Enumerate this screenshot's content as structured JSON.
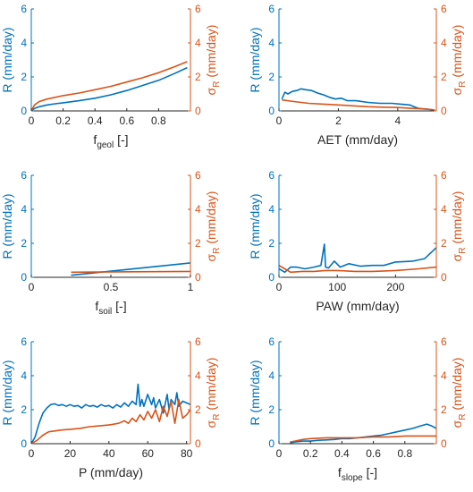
{
  "colors": {
    "R": "#0072BD",
    "sigma": "#D95319",
    "axis": "#262626"
  },
  "chart_data": [
    {
      "type": "line",
      "xlabel": "f",
      "xlabel_sub": "geol",
      "xlabel_suffix": " [-]",
      "ylabel_left": "R (mm/day)",
      "ylabel_right_sym": "σ",
      "ylabel_right_sub": "R",
      "ylabel_right_rest": " (mm/day)",
      "xlim": [
        0,
        1
      ],
      "ylim": [
        0,
        6
      ],
      "xticks": [
        0,
        0.2,
        0.4,
        0.6,
        0.8
      ],
      "xtick_labels": [
        "0",
        "0.2",
        "0.4",
        "0.6",
        "0.8"
      ],
      "yticks": [
        0,
        2,
        4,
        6
      ],
      "ytick_labels": [
        "0",
        "2",
        "4",
        "6"
      ],
      "series": [
        {
          "key": "R",
          "x": [
            0,
            0.02,
            0.05,
            0.1,
            0.15,
            0.2,
            0.3,
            0.4,
            0.5,
            0.6,
            0.7,
            0.8,
            0.9,
            0.98
          ],
          "y": [
            0,
            0.15,
            0.25,
            0.35,
            0.42,
            0.48,
            0.6,
            0.75,
            0.95,
            1.2,
            1.5,
            1.8,
            2.2,
            2.55
          ]
        },
        {
          "key": "sigma",
          "x": [
            0,
            0.02,
            0.05,
            0.1,
            0.15,
            0.2,
            0.3,
            0.4,
            0.5,
            0.6,
            0.7,
            0.8,
            0.9,
            0.98
          ],
          "y": [
            0,
            0.35,
            0.55,
            0.7,
            0.8,
            0.9,
            1.05,
            1.25,
            1.45,
            1.7,
            1.95,
            2.25,
            2.6,
            2.9
          ]
        }
      ]
    },
    {
      "type": "line",
      "xlabel": "AET (mm/day)",
      "xlabel_sub": "",
      "xlabel_suffix": "",
      "ylabel_left": "R (mm/day)",
      "ylabel_right_sym": "σ",
      "ylabel_right_sub": "R",
      "ylabel_right_rest": " (mm/day)",
      "xlim": [
        0,
        5.3
      ],
      "ylim": [
        0,
        6
      ],
      "xticks": [
        0,
        2,
        4
      ],
      "xtick_labels": [
        "0",
        "2",
        "4"
      ],
      "yticks": [
        0,
        2,
        4,
        6
      ],
      "ytick_labels": [
        "0",
        "2",
        "4",
        "6"
      ],
      "series": [
        {
          "key": "R",
          "x": [
            0.1,
            0.2,
            0.3,
            0.45,
            0.6,
            0.75,
            0.9,
            1.1,
            1.3,
            1.5,
            1.7,
            1.9,
            2.1,
            2.3,
            2.6,
            3.0,
            3.4,
            3.8,
            4.1,
            4.4,
            4.7,
            5.0,
            5.25
          ],
          "y": [
            0.7,
            1.1,
            1.0,
            1.15,
            1.2,
            1.3,
            1.25,
            1.2,
            1.05,
            0.95,
            0.8,
            0.7,
            0.75,
            0.6,
            0.6,
            0.5,
            0.45,
            0.45,
            0.4,
            0.35,
            0.15,
            0.1,
            0.05
          ]
        },
        {
          "key": "sigma",
          "x": [
            0.1,
            0.5,
            1.0,
            1.5,
            2.0,
            2.5,
            3.0,
            3.5,
            4.0,
            4.5,
            5.0,
            5.25
          ],
          "y": [
            0.65,
            0.55,
            0.45,
            0.4,
            0.35,
            0.3,
            0.25,
            0.22,
            0.2,
            0.15,
            0.1,
            0.05
          ]
        }
      ]
    },
    {
      "type": "line",
      "xlabel": "f",
      "xlabel_sub": "soil",
      "xlabel_suffix": " [-]",
      "ylabel_left": "R (mm/day)",
      "ylabel_right_sym": "σ",
      "ylabel_right_sub": "R",
      "ylabel_right_rest": " (mm/day)",
      "xlim": [
        0,
        1
      ],
      "ylim": [
        0,
        6
      ],
      "xticks": [
        0,
        0.5,
        1
      ],
      "xtick_labels": [
        "0",
        "0.5",
        "1"
      ],
      "yticks": [
        0,
        2,
        4,
        6
      ],
      "ytick_labels": [
        "0",
        "2",
        "4",
        "6"
      ],
      "series": [
        {
          "key": "R",
          "x": [
            0.25,
            1.0
          ],
          "y": [
            0.12,
            0.85
          ]
        },
        {
          "key": "sigma",
          "x": [
            0.25,
            1.0
          ],
          "y": [
            0.3,
            0.35
          ]
        }
      ]
    },
    {
      "type": "line",
      "xlabel": "PAW (mm/day)",
      "xlabel_sub": "",
      "xlabel_suffix": "",
      "ylabel_left": "R (mm/day)",
      "ylabel_right_sym": "σ",
      "ylabel_right_sub": "R",
      "ylabel_right_rest": " (mm/day)",
      "xlim": [
        0,
        270
      ],
      "ylim": [
        0,
        6
      ],
      "xticks": [
        0,
        100,
        200
      ],
      "xtick_labels": [
        "0",
        "100",
        "200"
      ],
      "yticks": [
        0,
        2,
        4,
        6
      ],
      "ytick_labels": [
        "0",
        "2",
        "4",
        "6"
      ],
      "series": [
        {
          "key": "R",
          "x": [
            0,
            10,
            20,
            30,
            45,
            60,
            72,
            78,
            80,
            85,
            95,
            105,
            120,
            140,
            160,
            180,
            200,
            230,
            250,
            270
          ],
          "y": [
            0.5,
            0.3,
            0.6,
            0.6,
            0.5,
            0.6,
            0.7,
            1.95,
            0.6,
            0.55,
            0.95,
            0.6,
            0.8,
            0.65,
            0.7,
            0.7,
            0.9,
            0.95,
            1.1,
            1.75
          ]
        },
        {
          "key": "sigma",
          "x": [
            0,
            10,
            20,
            40,
            60,
            80,
            100,
            130,
            160,
            200,
            240,
            270
          ],
          "y": [
            0.7,
            0.5,
            0.3,
            0.35,
            0.35,
            0.4,
            0.4,
            0.35,
            0.35,
            0.4,
            0.5,
            0.6
          ]
        }
      ]
    },
    {
      "type": "line",
      "xlabel": "P (mm/day)",
      "xlabel_sub": "",
      "xlabel_suffix": "",
      "ylabel_left": "R (mm/day)",
      "ylabel_right_sym": "σ",
      "ylabel_right_sub": "R",
      "ylabel_right_rest": " (mm/day)",
      "xlim": [
        0,
        82
      ],
      "ylim": [
        0,
        6
      ],
      "xticks": [
        0,
        20,
        40,
        60,
        80
      ],
      "xtick_labels": [
        "0",
        "20",
        "40",
        "60",
        "80"
      ],
      "yticks": [
        0,
        2,
        4,
        6
      ],
      "ytick_labels": [
        "0",
        "2",
        "4",
        "6"
      ],
      "series": [
        {
          "key": "R",
          "x": [
            0,
            2,
            4,
            6,
            8,
            10,
            12,
            14,
            16,
            18,
            20,
            22,
            24,
            26,
            28,
            30,
            32,
            34,
            36,
            38,
            40,
            42,
            44,
            46,
            48,
            50,
            52,
            54,
            55,
            56,
            57,
            58,
            60,
            62,
            63,
            64,
            66,
            68,
            70,
            71,
            72,
            74,
            75,
            76,
            78,
            80,
            82
          ],
          "y": [
            0,
            0.4,
            1.2,
            1.8,
            2.1,
            2.3,
            2.35,
            2.25,
            2.3,
            2.2,
            2.3,
            2.2,
            2.25,
            2.1,
            2.3,
            2.2,
            2.25,
            2.15,
            2.3,
            2.2,
            2.25,
            2.1,
            2.3,
            2.15,
            2.4,
            2.2,
            2.5,
            2.3,
            3.5,
            2.2,
            2.6,
            2.2,
            2.9,
            2.3,
            2.7,
            2.1,
            2.6,
            1.8,
            2.9,
            2.0,
            2.6,
            2.3,
            3.0,
            2.2,
            2.5,
            2.4,
            2.3
          ]
        },
        {
          "key": "sigma",
          "x": [
            0,
            3,
            6,
            9,
            12,
            15,
            20,
            25,
            30,
            35,
            40,
            45,
            48,
            50,
            52,
            54,
            56,
            58,
            60,
            62,
            64,
            66,
            68,
            70,
            72,
            74,
            76,
            78,
            80,
            82
          ],
          "y": [
            0,
            0.2,
            0.5,
            0.7,
            0.75,
            0.8,
            0.85,
            0.9,
            1.0,
            1.05,
            1.1,
            1.2,
            1.35,
            1.2,
            1.5,
            1.3,
            1.7,
            1.4,
            1.9,
            1.5,
            2.0,
            1.3,
            2.2,
            1.6,
            2.5,
            1.2,
            2.6,
            1.5,
            1.7,
            2.0
          ]
        }
      ]
    },
    {
      "type": "line",
      "xlabel": "f",
      "xlabel_sub": "slope",
      "xlabel_suffix": " [-]",
      "ylabel_left": "R (mm/day)",
      "ylabel_right_sym": "σ",
      "ylabel_right_sub": "R",
      "ylabel_right_rest": " (mm/day)",
      "xlim": [
        0,
        1
      ],
      "ylim": [
        0,
        6
      ],
      "xticks": [
        0,
        0.2,
        0.4,
        0.6,
        0.8
      ],
      "xtick_labels": [
        "0",
        "0.2",
        "0.4",
        "0.6",
        "0.8"
      ],
      "yticks": [
        0,
        2,
        4,
        6
      ],
      "ytick_labels": [
        "0",
        "2",
        "4",
        "6"
      ],
      "series": [
        {
          "key": "R",
          "x": [
            0.07,
            0.1,
            0.15,
            0.2,
            0.25,
            0.3,
            0.35,
            0.4,
            0.45,
            0.5,
            0.55,
            0.6,
            0.65,
            0.7,
            0.75,
            0.8,
            0.85,
            0.9,
            0.94,
            0.97,
            1.0
          ],
          "y": [
            0.05,
            0.1,
            0.15,
            0.15,
            0.2,
            0.22,
            0.25,
            0.3,
            0.3,
            0.35,
            0.4,
            0.45,
            0.5,
            0.6,
            0.7,
            0.8,
            0.9,
            1.05,
            1.15,
            1.05,
            0.9
          ]
        },
        {
          "key": "sigma",
          "x": [
            0.07,
            0.1,
            0.15,
            0.2,
            0.3,
            0.4,
            0.5,
            0.6,
            0.7,
            0.8,
            0.9,
            1.0
          ],
          "y": [
            0.1,
            0.15,
            0.25,
            0.3,
            0.35,
            0.35,
            0.35,
            0.4,
            0.4,
            0.45,
            0.45,
            0.45
          ]
        }
      ]
    }
  ]
}
